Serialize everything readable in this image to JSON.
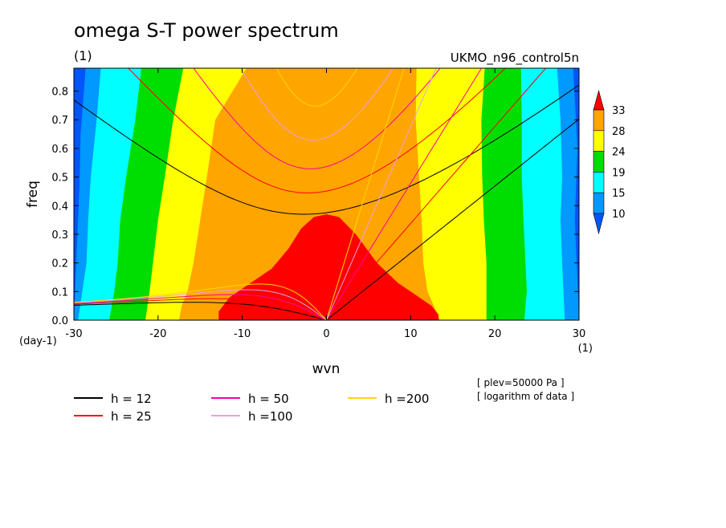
{
  "chart_data": {
    "type": "heatmap",
    "title": "omega S-T power spectrum",
    "subtitle": "(1)",
    "run_label": "UKMO_n96_control5n",
    "xlabel": "wvn",
    "ylabel": "freq",
    "x_unit": "(1)",
    "y_unit": "(day-1)",
    "xlim": [
      -30,
      30
    ],
    "ylim": [
      0,
      0.88
    ],
    "xticks": [
      -30,
      -20,
      -10,
      0,
      10,
      20,
      30
    ],
    "yticks": [
      0.0,
      0.1,
      0.2,
      0.3,
      0.4,
      0.5,
      0.6,
      0.7,
      0.8
    ],
    "xtick_labels": [
      "-30",
      "-20",
      "-10",
      "0",
      "10",
      "20",
      "30"
    ],
    "ytick_labels": [
      "0.0",
      "0.1",
      "0.2",
      "0.3",
      "0.4",
      "0.5",
      "0.6",
      "0.7",
      "0.8"
    ],
    "colorbar": {
      "levels": [
        "33",
        "28",
        "24",
        "19",
        "15",
        "10"
      ],
      "colors": [
        "#ff0000",
        "#ffa500",
        "#ffff00",
        "#00dd00",
        "#00ffff",
        "#0099ff",
        "#0055ff"
      ]
    },
    "bands": [
      {
        "level": "<10",
        "color": "#0055ff",
        "left": [
          [
            0,
            -30
          ],
          [
            0.88,
            -30
          ]
        ],
        "right": [
          [
            0,
            30
          ],
          [
            0.88,
            30
          ]
        ]
      },
      {
        "level": "10-15",
        "color": "#0099ff",
        "left": [
          [
            0,
            -30
          ],
          [
            0.35,
            -29.5
          ],
          [
            0.5,
            -29.3
          ],
          [
            0.65,
            -29.2
          ],
          [
            0.88,
            -28.6
          ]
        ],
        "right": [
          [
            0,
            30
          ],
          [
            0.35,
            29.5
          ],
          [
            0.6,
            29.8
          ],
          [
            0.88,
            29.3
          ]
        ]
      },
      {
        "level": "15-19",
        "color": "#00ffff",
        "left": [
          [
            0,
            -29.5
          ],
          [
            0.1,
            -29.0
          ],
          [
            0.2,
            -28.5
          ],
          [
            0.35,
            -28.3
          ],
          [
            0.5,
            -28.0
          ],
          [
            0.7,
            -27.3
          ],
          [
            0.88,
            -26.8
          ]
        ],
        "right": [
          [
            0,
            28.3
          ],
          [
            0.2,
            28.0
          ],
          [
            0.35,
            27.8
          ],
          [
            0.5,
            28.0
          ],
          [
            0.7,
            27.8
          ],
          [
            0.88,
            27.4
          ]
        ]
      },
      {
        "level": "19-24",
        "color": "#00dd00",
        "left": [
          [
            0,
            -25.8
          ],
          [
            0.1,
            -25.2
          ],
          [
            0.2,
            -24.8
          ],
          [
            0.35,
            -24.5
          ],
          [
            0.5,
            -23.8
          ],
          [
            0.7,
            -22.7
          ],
          [
            0.88,
            -22.0
          ]
        ],
        "right": [
          [
            0,
            23.5
          ],
          [
            0.1,
            23.8
          ],
          [
            0.35,
            23.4
          ],
          [
            0.5,
            23.2
          ],
          [
            0.7,
            23.2
          ],
          [
            0.88,
            23.1
          ]
        ]
      },
      {
        "level": "24-28",
        "color": "#ffff00",
        "left": [
          [
            0,
            -21.5
          ],
          [
            0.1,
            -21.0
          ],
          [
            0.2,
            -20.6
          ],
          [
            0.35,
            -20.0
          ],
          [
            0.5,
            -19.2
          ],
          [
            0.7,
            -18.2
          ],
          [
            0.88,
            -17.0
          ]
        ],
        "right": [
          [
            0,
            19.0
          ],
          [
            0.2,
            19.0
          ],
          [
            0.35,
            18.7
          ],
          [
            0.5,
            18.5
          ],
          [
            0.7,
            18.4
          ],
          [
            0.88,
            18.8
          ]
        ]
      },
      {
        "level": "28-33",
        "color": "#ffa500",
        "left": [
          [
            0,
            -17.5
          ],
          [
            0.05,
            -17.2
          ],
          [
            0.1,
            -16.5
          ],
          [
            0.2,
            -15.8
          ],
          [
            0.35,
            -15.0
          ],
          [
            0.5,
            -14.2
          ],
          [
            0.7,
            -13.2
          ],
          [
            0.88,
            -9.5
          ]
        ],
        "right": [
          [
            0,
            13.5
          ],
          [
            0.1,
            12.0
          ],
          [
            0.2,
            11.5
          ],
          [
            0.35,
            11.3
          ],
          [
            0.5,
            11.0
          ],
          [
            0.7,
            10.6
          ],
          [
            0.88,
            10.7
          ]
        ]
      }
    ],
    "peak_region": {
      "level": ">33",
      "color": "#ff0000",
      "outline": [
        [
          -12.8,
          0
        ],
        [
          -12.8,
          0.03
        ],
        [
          -11.5,
          0.08
        ],
        [
          -9.0,
          0.13
        ],
        [
          -6.5,
          0.18
        ],
        [
          -4.5,
          0.25
        ],
        [
          -3.0,
          0.32
        ],
        [
          -1.5,
          0.36
        ],
        [
          0,
          0.37
        ],
        [
          1.5,
          0.36
        ],
        [
          3.5,
          0.3
        ],
        [
          6.0,
          0.2
        ],
        [
          8.5,
          0.13
        ],
        [
          10.5,
          0.09
        ],
        [
          12.5,
          0.05
        ],
        [
          13.3,
          0.02
        ],
        [
          13.3,
          0
        ]
      ]
    },
    "series": [
      {
        "name": "h = 12",
        "color": "#000000"
      },
      {
        "name": "h = 25",
        "color": "#ff0000"
      },
      {
        "name": "h = 50",
        "color": "#ff00a0"
      },
      {
        "name": "h =100",
        "color": "#e8a0e0"
      },
      {
        "name": "h =200",
        "color": "#ffd700"
      }
    ],
    "annotations": [
      "[ plev=50000 Pa ]",
      "[ logarithm of data ]"
    ]
  }
}
